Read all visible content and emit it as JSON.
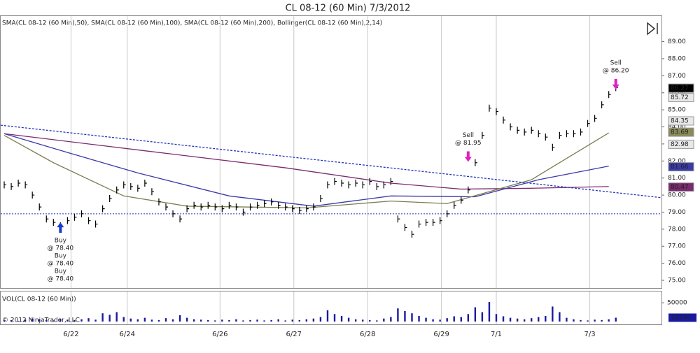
{
  "chart_data": {
    "type": "ohlc",
    "title": "CL 08-12 (60 Min)  7/3/2012",
    "indicator_label": "SMA(CL 08-12 (60 Min),50), SMA(CL 08-12 (60 Min),100), SMA(CL 08-12 (60 Min),200), Bollinger(CL 08-12 (60 Min),2,14)",
    "volume_label": "VOL(CL 08-12 (60 Min))",
    "copyright": "© 2012 NinjaTrader, LLC",
    "close": [
      80.6,
      80.5,
      80.7,
      80.6,
      80.0,
      79.3,
      78.6,
      78.4,
      78.2,
      78.5,
      78.7,
      78.9,
      78.5,
      78.3,
      79.2,
      79.8,
      80.3,
      80.6,
      80.5,
      80.4,
      80.7,
      80.2,
      79.6,
      79.3,
      78.9,
      78.6,
      79.2,
      79.4,
      79.3,
      79.4,
      79.3,
      79.2,
      79.4,
      79.3,
      79.0,
      79.3,
      79.4,
      79.5,
      79.6,
      79.4,
      79.3,
      79.2,
      79.1,
      79.2,
      79.3,
      79.8,
      80.6,
      80.8,
      80.7,
      80.6,
      80.7,
      80.6,
      80.8,
      80.5,
      80.6,
      80.8,
      78.6,
      78.1,
      77.7,
      78.3,
      78.4,
      78.4,
      78.5,
      78.9,
      79.4,
      79.7,
      80.3,
      81.9,
      83.5,
      85.1,
      84.9,
      84.4,
      84.0,
      83.8,
      83.7,
      83.8,
      83.6,
      83.4,
      82.8,
      83.5,
      83.6,
      83.6,
      83.7,
      84.2,
      84.5,
      85.3,
      85.9,
      86.3
    ],
    "color": "#000000",
    "volume": [
      3000,
      4000,
      2000,
      5000,
      8000,
      6000,
      4000,
      3000,
      7000,
      5000,
      4000,
      6000,
      9000,
      5000,
      22000,
      18000,
      25000,
      12000,
      8000,
      6000,
      10000,
      5000,
      4000,
      9000,
      6000,
      17000,
      10000,
      6000,
      5000,
      4000,
      3000,
      5000,
      4000,
      6000,
      3000,
      4000,
      5000,
      3000,
      4000,
      6000,
      3000,
      5000,
      4000,
      6000,
      8000,
      12000,
      30000,
      20000,
      15000,
      10000,
      6000,
      5000,
      4000,
      3000,
      8000,
      12000,
      35000,
      28000,
      22000,
      15000,
      10000,
      6000,
      5000,
      9000,
      14000,
      12000,
      20000,
      38000,
      25000,
      52000,
      20000,
      14000,
      10000,
      8000,
      6000,
      9000,
      12000,
      15000,
      40000,
      25000,
      10000,
      6000,
      4000,
      3000,
      5000,
      4000,
      6000,
      10246
    ],
    "volume_color": "#1a1aa0",
    "series": [
      {
        "name": "SMA200",
        "color": "#7a2a6e",
        "x": [
          0,
          20,
          40,
          55,
          65,
          75,
          86
        ],
        "values": [
          83.6,
          82.6,
          81.6,
          80.7,
          80.35,
          80.4,
          80.5
        ]
      },
      {
        "name": "SMA100",
        "color": "#3a3aa8",
        "x": [
          0,
          9,
          19,
          32,
          44,
          55,
          67,
          76,
          86
        ],
        "values": [
          83.6,
          82.5,
          81.3,
          79.95,
          79.35,
          79.95,
          79.9,
          80.9,
          81.7
        ]
      },
      {
        "name": "SMA50",
        "color": "#7d7d50",
        "x": [
          0,
          7,
          17,
          26,
          43,
          55,
          63,
          75,
          86
        ],
        "values": [
          83.5,
          81.9,
          79.95,
          79.35,
          79.25,
          79.65,
          79.5,
          80.9,
          83.65
        ]
      },
      {
        "name": "Trend",
        "color": "#2233bb",
        "x": [
          -0.5,
          93.5
        ],
        "values": [
          84.1,
          79.85
        ]
      }
    ],
    "level": 78.9,
    "annotations": [
      {
        "lines": [
          "Buy",
          "@ 78.40",
          "Buy",
          "@ 78.40",
          "Buy",
          "@ 78.40"
        ],
        "x": 8,
        "value": 78.4,
        "kind": "buy"
      },
      {
        "lines": [
          "Sell",
          "@ 81.95"
        ],
        "x": 66,
        "value": 81.95,
        "kind": "sell"
      },
      {
        "lines": [
          "Sell",
          "@ 86.20"
        ],
        "x": 87,
        "value": 86.2,
        "kind": "sell"
      }
    ],
    "xlim": [
      -0.5,
      93.5
    ],
    "xticks": [
      {
        "value": 9.5,
        "label": "6/22"
      },
      {
        "value": 17.5,
        "label": "6/24"
      },
      {
        "value": 30.7,
        "label": "6/26"
      },
      {
        "value": 41.2,
        "label": "6/27"
      },
      {
        "value": 51.7,
        "label": "6/28"
      },
      {
        "value": 62.2,
        "label": "6/29"
      },
      {
        "value": 70,
        "label": "7/1"
      },
      {
        "value": 83.3,
        "label": "7/3"
      }
    ],
    "ylim": [
      74.55,
      90.5
    ],
    "yticks": [
      {
        "value": 75,
        "label": "75.00"
      },
      {
        "value": 76,
        "label": "76.00"
      },
      {
        "value": 77,
        "label": "77.00"
      },
      {
        "value": 78,
        "label": "78.00"
      },
      {
        "value": 79,
        "label": "79.00"
      },
      {
        "value": 80,
        "label": "80.00"
      },
      {
        "value": 81,
        "label": "81.00"
      },
      {
        "value": 82,
        "label": "82.00"
      },
      {
        "value": 83,
        "label": "83.00"
      },
      {
        "value": 84,
        "label": "84.00"
      },
      {
        "value": 85,
        "label": "85.00"
      },
      {
        "value": 86,
        "label": "86.00"
      },
      {
        "value": 87,
        "label": "87.00"
      },
      {
        "value": 88,
        "label": "88.00"
      },
      {
        "value": 89,
        "label": "89.00"
      }
    ],
    "price_labels": [
      {
        "value": 86.27,
        "label": "86.27",
        "color": "#000000"
      },
      {
        "value": 85.72,
        "label": "85.72",
        "color": "#e8e8e8"
      },
      {
        "value": 84.35,
        "label": "84.35",
        "color": "#e8e8e8"
      },
      {
        "value": 83.69,
        "label": "83.69",
        "color": "#8a8a5a"
      },
      {
        "value": 82.98,
        "label": "82.98",
        "color": "#e8e8e8"
      },
      {
        "value": 81.66,
        "label": "81.66",
        "color": "#3a3aa8"
      },
      {
        "value": 80.47,
        "label": "80.47",
        "color": "#7a2a6e"
      }
    ],
    "vlim": [
      0,
      80000
    ],
    "vticks": [
      50000
    ],
    "volume_last": {
      "value": 10246,
      "label": "10246"
    }
  }
}
